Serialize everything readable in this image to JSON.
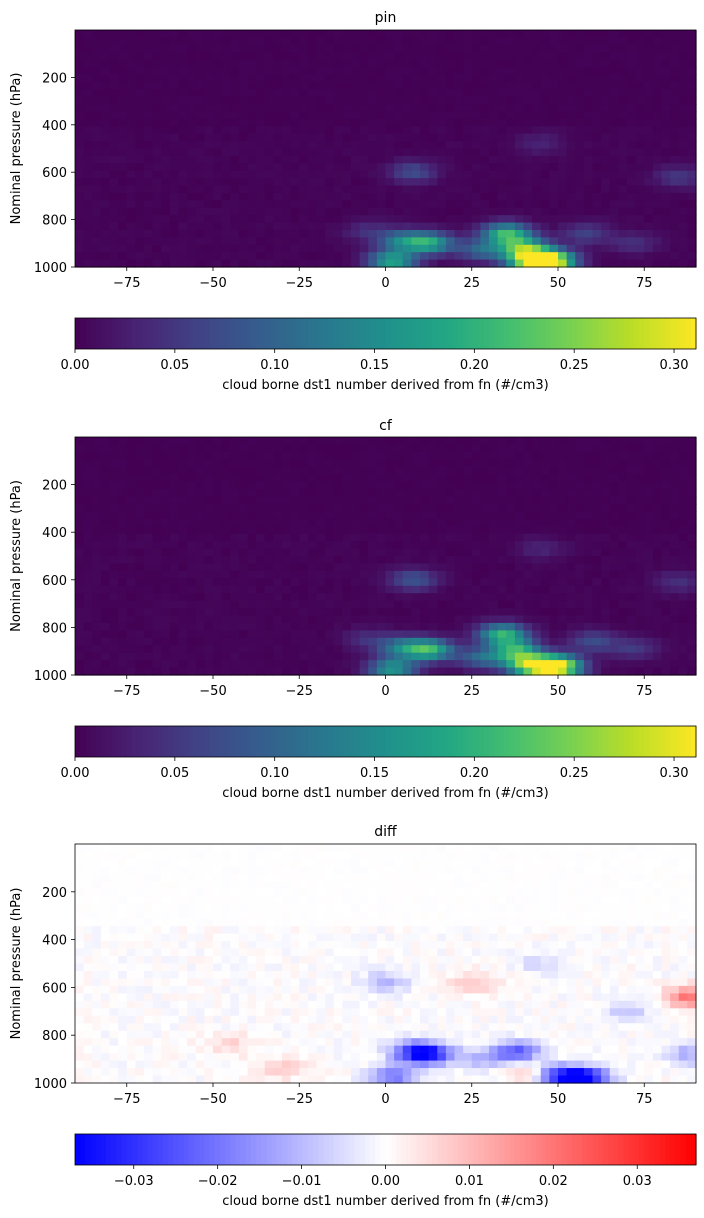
{
  "chart_data": [
    {
      "type": "heatmap",
      "title": "pin",
      "ylabel": "Nominal pressure (hPa)",
      "xlabel": "",
      "x_range": [
        -90,
        90
      ],
      "y_range": [
        1000,
        0
      ],
      "y_inverted": true,
      "x_ticks": [
        "−75",
        "−50",
        "−25",
        "0",
        "25",
        "50",
        "75"
      ],
      "x_tick_values": [
        -75,
        -50,
        -25,
        0,
        25,
        50,
        75
      ],
      "y_ticks": [
        "200",
        "400",
        "600",
        "800",
        "1000"
      ],
      "y_tick_values": [
        200,
        400,
        600,
        800,
        1000
      ],
      "colormap": "viridis",
      "colorbar": {
        "label": "cloud borne dst1 number derived from fn (#/cm3)",
        "range": [
          0,
          0.311
        ],
        "ticks": [
          "0.00",
          "0.05",
          "0.10",
          "0.15",
          "0.20",
          "0.25",
          "0.30"
        ],
        "tick_values": [
          0,
          0.05,
          0.1,
          0.15,
          0.2,
          0.25,
          0.3
        ]
      },
      "features": [
        {
          "lat": 48,
          "p": 975,
          "value": 0.3
        },
        {
          "lat": 42,
          "p": 975,
          "value": 0.22
        },
        {
          "lat": 35,
          "p": 860,
          "value": 0.2
        },
        {
          "lat": 40,
          "p": 920,
          "value": 0.19
        },
        {
          "lat": 13,
          "p": 900,
          "value": 0.17
        },
        {
          "lat": 5,
          "p": 890,
          "value": 0.12
        },
        {
          "lat": 2,
          "p": 975,
          "value": 0.18
        },
        {
          "lat": 28,
          "p": 930,
          "value": 0.1
        },
        {
          "lat": 8,
          "p": 600,
          "value": 0.07
        },
        {
          "lat": 58,
          "p": 860,
          "value": 0.06
        },
        {
          "lat": -5,
          "p": 850,
          "value": 0.04
        },
        {
          "lat": 72,
          "p": 900,
          "value": 0.04
        },
        {
          "lat": 85,
          "p": 620,
          "value": 0.05
        },
        {
          "lat": 45,
          "p": 480,
          "value": 0.03
        }
      ]
    },
    {
      "type": "heatmap",
      "title": "cf",
      "ylabel": "Nominal pressure (hPa)",
      "xlabel": "",
      "x_range": [
        -90,
        90
      ],
      "y_range": [
        1000,
        0
      ],
      "y_inverted": true,
      "x_ticks": [
        "−75",
        "−50",
        "−25",
        "0",
        "25",
        "50",
        "75"
      ],
      "x_tick_values": [
        -75,
        -50,
        -25,
        0,
        25,
        50,
        75
      ],
      "y_ticks": [
        "200",
        "400",
        "600",
        "800",
        "1000"
      ],
      "y_tick_values": [
        200,
        400,
        600,
        800,
        1000
      ],
      "colormap": "viridis",
      "colorbar": {
        "label": "cloud borne dst1 number derived from fn (#/cm3)",
        "range": [
          0,
          0.311
        ],
        "ticks": [
          "0.00",
          "0.05",
          "0.10",
          "0.15",
          "0.20",
          "0.25",
          "0.30"
        ],
        "tick_values": [
          0,
          0.05,
          0.1,
          0.15,
          0.2,
          0.25,
          0.3
        ]
      },
      "features": [
        {
          "lat": 50,
          "p": 965,
          "value": 0.31
        },
        {
          "lat": 42,
          "p": 960,
          "value": 0.24
        },
        {
          "lat": 34,
          "p": 830,
          "value": 0.2
        },
        {
          "lat": 38,
          "p": 900,
          "value": 0.18
        },
        {
          "lat": 13,
          "p": 895,
          "value": 0.19
        },
        {
          "lat": 5,
          "p": 885,
          "value": 0.12
        },
        {
          "lat": 2,
          "p": 975,
          "value": 0.16
        },
        {
          "lat": 28,
          "p": 930,
          "value": 0.1
        },
        {
          "lat": 8,
          "p": 600,
          "value": 0.08
        },
        {
          "lat": 60,
          "p": 860,
          "value": 0.07
        },
        {
          "lat": -5,
          "p": 850,
          "value": 0.04
        },
        {
          "lat": 72,
          "p": 890,
          "value": 0.05
        },
        {
          "lat": 85,
          "p": 610,
          "value": 0.04
        },
        {
          "lat": 45,
          "p": 470,
          "value": 0.03
        }
      ]
    },
    {
      "type": "heatmap",
      "title": "diff",
      "ylabel": "Nominal pressure (hPa)",
      "xlabel": "",
      "x_range": [
        -90,
        90
      ],
      "y_range": [
        1000,
        0
      ],
      "y_inverted": true,
      "x_ticks": [
        "−75",
        "−50",
        "−25",
        "0",
        "25",
        "50",
        "75"
      ],
      "x_tick_values": [
        -75,
        -50,
        -25,
        0,
        25,
        50,
        75
      ],
      "y_ticks": [
        "200",
        "400",
        "600",
        "800",
        "1000"
      ],
      "y_tick_values": [
        200,
        400,
        600,
        800,
        1000
      ],
      "colormap": "bwr",
      "colorbar": {
        "label": "cloud borne dst1 number derived from fn (#/cm3)",
        "range": [
          -0.037,
          0.037
        ],
        "ticks": [
          "−0.03",
          "−0.02",
          "−0.01",
          "0.00",
          "0.01",
          "0.02",
          "0.03"
        ],
        "tick_values": [
          -0.03,
          -0.02,
          -0.01,
          0,
          0.01,
          0.02,
          0.03
        ]
      },
      "features": [
        {
          "lat": 58,
          "p": 980,
          "value": -0.035
        },
        {
          "lat": 50,
          "p": 970,
          "value": -0.03
        },
        {
          "lat": 13,
          "p": 880,
          "value": -0.028
        },
        {
          "lat": 8,
          "p": 870,
          "value": -0.022
        },
        {
          "lat": 38,
          "p": 870,
          "value": -0.024
        },
        {
          "lat": 2,
          "p": 975,
          "value": -0.02
        },
        {
          "lat": 28,
          "p": 900,
          "value": -0.01
        },
        {
          "lat": 0,
          "p": 580,
          "value": -0.01
        },
        {
          "lat": 88,
          "p": 640,
          "value": 0.02
        },
        {
          "lat": 88,
          "p": 880,
          "value": -0.012
        },
        {
          "lat": 70,
          "p": 700,
          "value": -0.008
        },
        {
          "lat": 45,
          "p": 500,
          "value": -0.006
        },
        {
          "lat": 25,
          "p": 580,
          "value": 0.009
        },
        {
          "lat": -45,
          "p": 840,
          "value": 0.006
        },
        {
          "lat": -30,
          "p": 940,
          "value": 0.007
        },
        {
          "lat": 42,
          "p": 960,
          "value": 0.012
        }
      ]
    }
  ]
}
